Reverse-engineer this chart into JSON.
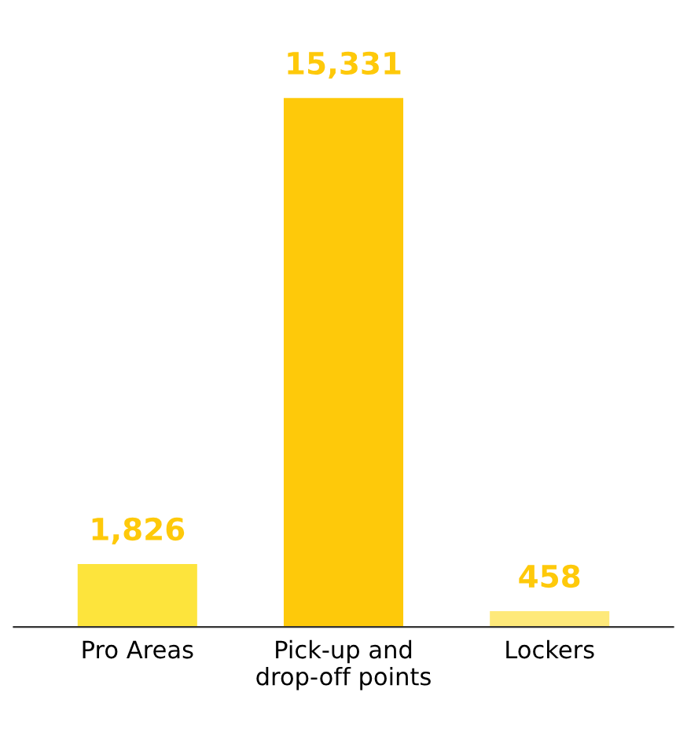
{
  "chart_data": {
    "type": "bar",
    "categories": [
      "Pro Areas",
      "Pick-up and drop-off points",
      "Lockers"
    ],
    "values": [
      1826,
      15331,
      458
    ],
    "colors": [
      "#fde43c",
      "#fec90a",
      "#fee97a"
    ],
    "value_labels": [
      "1,826",
      "15,331",
      "458"
    ],
    "grid": false,
    "legend": false
  }
}
